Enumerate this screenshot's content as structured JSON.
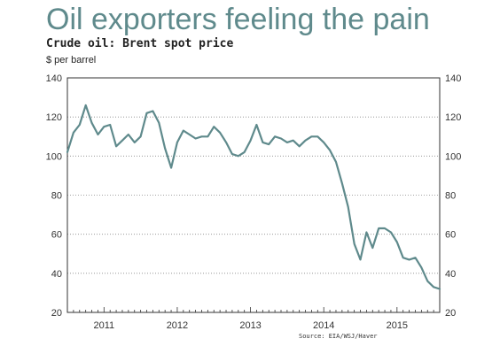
{
  "headline": "Oil exporters feeling the pain",
  "chart_data": {
    "type": "line",
    "title": "Crude oil: Brent spot price",
    "ylabel": "$ per barrel",
    "source": "Source: EIA/WSJ/Haver",
    "ylim": [
      20,
      140
    ],
    "yticks": [
      20,
      40,
      60,
      80,
      100,
      120,
      140
    ],
    "ytick_labels": [
      "20",
      "40",
      "60",
      "80",
      "100",
      "120",
      "140"
    ],
    "xlim": [
      2010.5,
      2015.583
    ],
    "xtick_labels": [
      {
        "label": "2011",
        "x": 2011.0
      },
      {
        "label": "2012",
        "x": 2012.0
      },
      {
        "label": "2013",
        "x": 2013.0
      },
      {
        "label": "2014",
        "x": 2014.0
      },
      {
        "label": "2015",
        "x": 2015.0
      }
    ],
    "grid": true,
    "line_color": "#5f8a8c",
    "series": [
      {
        "x": [
          2010.5,
          2010.583,
          2010.667,
          2010.75,
          2010.833,
          2010.917,
          2011.0,
          2011.083,
          2011.167,
          2011.25,
          2011.333,
          2011.417,
          2011.5,
          2011.583,
          2011.667,
          2011.75,
          2011.833,
          2011.917,
          2012.0,
          2012.083,
          2012.167,
          2012.25,
          2012.333,
          2012.417,
          2012.5,
          2012.583,
          2012.667,
          2012.75,
          2012.833,
          2012.917,
          2013.0,
          2013.083,
          2013.167,
          2013.25,
          2013.333,
          2013.417,
          2013.5,
          2013.583,
          2013.667,
          2013.75,
          2013.833,
          2013.917,
          2014.0,
          2014.083,
          2014.167,
          2014.25,
          2014.333,
          2014.417,
          2014.5,
          2014.583,
          2014.667,
          2014.75,
          2014.833,
          2014.917,
          2015.0,
          2015.083,
          2015.167,
          2015.25,
          2015.333,
          2015.417,
          2015.5,
          2015.583
        ],
        "values": [
          102,
          112,
          116,
          126,
          117,
          111,
          115,
          116,
          105,
          108,
          111,
          107,
          110,
          122,
          123,
          117,
          104,
          94,
          107,
          113,
          111,
          109,
          110,
          110,
          115,
          112,
          107,
          101,
          100,
          102,
          108,
          116,
          107,
          106,
          110,
          109,
          107,
          108,
          105,
          108,
          110,
          110,
          107,
          103,
          97,
          86,
          74,
          55,
          47,
          61,
          53,
          63,
          63,
          61,
          56,
          48,
          47,
          48,
          43,
          36,
          33,
          32
        ]
      }
    ]
  }
}
